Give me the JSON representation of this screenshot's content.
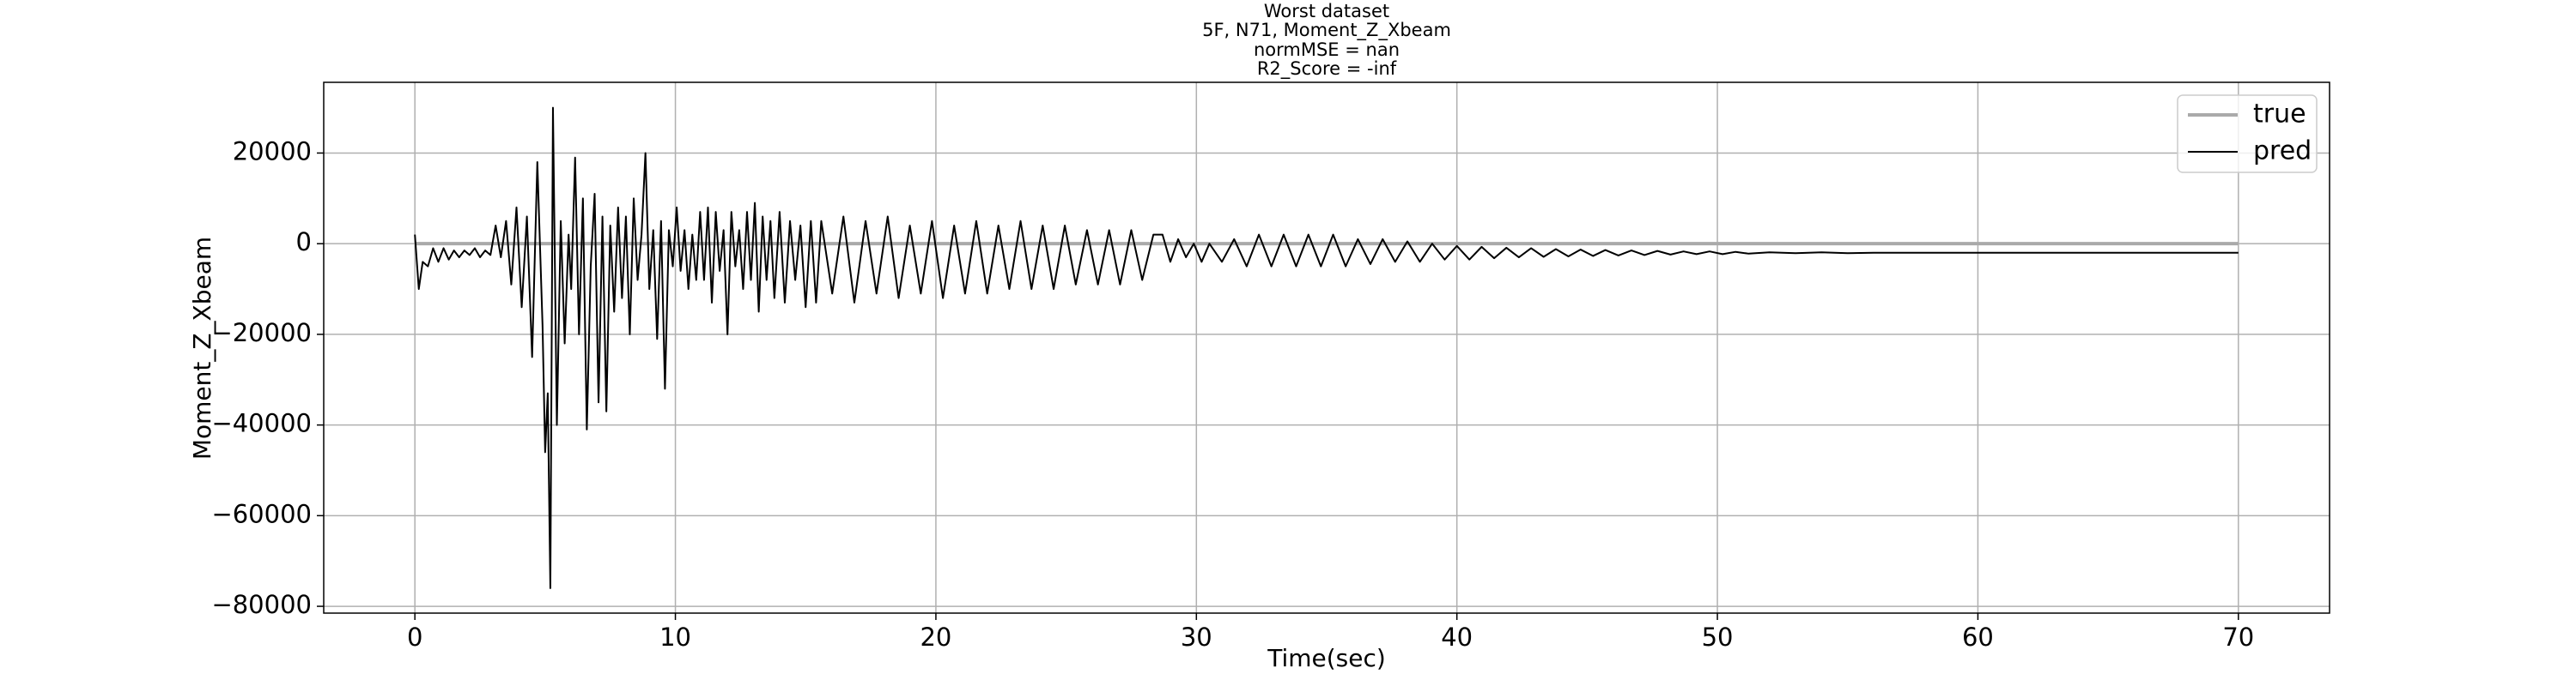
{
  "chart_data": {
    "type": "line",
    "title": [
      "Worst dataset",
      "5F, N71, Moment_Z_Xbeam",
      "normMSE = nan",
      "R2_Score = -inf"
    ],
    "xlabel": "Time(sec)",
    "ylabel": "Moment_Z_Xbeam",
    "xlim": [
      -3.5,
      73.5
    ],
    "xticks": [
      0,
      10,
      20,
      30,
      40,
      50,
      60,
      70
    ],
    "ylim": [
      -81500,
      35600
    ],
    "yticks": [
      {
        "value": -80000,
        "label": "−80000"
      },
      {
        "value": -60000,
        "label": "−60000"
      },
      {
        "value": -40000,
        "label": "−40000"
      },
      {
        "value": -20000,
        "label": "−20000"
      },
      0,
      20000
    ],
    "grid": true,
    "legend": "upper right",
    "series": [
      {
        "name": "true",
        "color": "#aaaaaa",
        "x": [
          0,
          70
        ],
        "values": [
          0,
          0
        ]
      },
      {
        "name": "pred",
        "color": "#000000",
        "x": [
          0,
          0.15,
          0.3,
          0.5,
          0.7,
          0.9,
          1.1,
          1.3,
          1.5,
          1.7,
          1.9,
          2.1,
          2.3,
          2.5,
          2.7,
          2.9,
          3.1,
          3.3,
          3.5,
          3.7,
          3.9,
          4.1,
          4.3,
          4.5,
          4.7,
          4.9,
          5.0,
          5.1,
          5.2,
          5.3,
          5.45,
          5.6,
          5.75,
          5.9,
          6.0,
          6.15,
          6.3,
          6.45,
          6.6,
          6.75,
          6.9,
          7.05,
          7.2,
          7.35,
          7.5,
          7.65,
          7.8,
          7.95,
          8.1,
          8.25,
          8.4,
          8.55,
          8.7,
          8.85,
          9.0,
          9.15,
          9.3,
          9.45,
          9.6,
          9.75,
          9.9,
          10.05,
          10.2,
          10.35,
          10.5,
          10.65,
          10.8,
          10.95,
          11.1,
          11.25,
          11.4,
          11.55,
          11.7,
          11.85,
          12.0,
          12.15,
          12.3,
          12.45,
          12.6,
          12.75,
          12.9,
          13.05,
          13.2,
          13.35,
          13.5,
          13.65,
          13.8,
          14.0,
          14.2,
          14.4,
          14.6,
          14.8,
          15.0,
          15.2,
          15.4,
          15.6,
          16.02,
          16.45,
          16.87,
          17.3,
          17.72,
          18.15,
          18.57,
          19.0,
          19.42,
          19.85,
          20.27,
          20.7,
          21.12,
          21.55,
          21.97,
          22.4,
          22.82,
          23.25,
          23.67,
          24.1,
          24.52,
          24.95,
          25.37,
          25.8,
          26.22,
          26.65,
          27.07,
          27.5,
          27.92,
          28.35,
          28.7,
          29.0,
          29.3,
          29.6,
          29.9,
          30.2,
          30.5,
          30.98,
          31.45,
          31.93,
          32.4,
          32.88,
          33.35,
          33.83,
          34.3,
          34.78,
          35.25,
          35.73,
          36.2,
          36.68,
          37.15,
          37.63,
          38.1,
          38.58,
          39.05,
          39.53,
          40.0,
          40.48,
          40.95,
          41.43,
          41.9,
          42.38,
          42.85,
          43.33,
          43.8,
          44.28,
          44.75,
          45.23,
          45.7,
          46.2,
          46.7,
          47.2,
          47.7,
          48.2,
          48.7,
          49.2,
          49.7,
          50.2,
          50.7,
          51.2,
          52,
          53,
          54,
          55,
          56,
          60,
          65,
          70
        ],
        "values": [
          2000,
          -10000,
          -4000,
          -5000,
          -1000,
          -4000,
          -1000,
          -3500,
          -1500,
          -3000,
          -1500,
          -2500,
          -1000,
          -3000,
          -1500,
          -2500,
          4000,
          -3000,
          5000,
          -9000,
          8000,
          -14000,
          6000,
          -25000,
          18000,
          -18000,
          -46000,
          -33000,
          -76000,
          30000,
          -40000,
          5000,
          -22000,
          2000,
          -10000,
          19000,
          -20000,
          10000,
          -41000,
          -5000,
          11000,
          -35000,
          6000,
          -37000,
          4000,
          -15000,
          8000,
          -12000,
          6000,
          -20000,
          10000,
          -8000,
          2000,
          20000,
          -10000,
          3000,
          -21000,
          5000,
          -32000,
          3000,
          -5000,
          8000,
          -6000,
          3000,
          -10000,
          2000,
          -8000,
          7000,
          -8000,
          8000,
          -13000,
          7000,
          -6000,
          3000,
          -20000,
          7000,
          -5000,
          3000,
          -10000,
          7000,
          -8000,
          9000,
          -15000,
          6000,
          -8000,
          5000,
          -12000,
          7000,
          -13000,
          5000,
          -8000,
          4000,
          -14000,
          5000,
          -13000,
          5000,
          -11000,
          6000,
          -13000,
          5000,
          -11000,
          6000,
          -12000,
          4000,
          -11000,
          5000,
          -12000,
          4000,
          -11000,
          5000,
          -11000,
          4000,
          -10000,
          5000,
          -10000,
          4000,
          -10000,
          4000,
          -9000,
          3000,
          -9000,
          3000,
          -9000,
          3000,
          -8000,
          2000,
          2000,
          -4000,
          1000,
          -3000,
          0,
          -4000,
          0,
          -4000,
          1000,
          -5000,
          2000,
          -5000,
          2000,
          -5000,
          2000,
          -5000,
          2000,
          -5000,
          1000,
          -4500,
          1000,
          -4000,
          500,
          -4000,
          0,
          -3500,
          -500,
          -3500,
          -700,
          -3200,
          -900,
          -3000,
          -1000,
          -2900,
          -1200,
          -2800,
          -1300,
          -2700,
          -1400,
          -2600,
          -1500,
          -2500,
          -1600,
          -2400,
          -1700,
          -2300,
          -1700,
          -2300,
          -1800,
          -2200,
          -1900,
          -2100,
          -1900,
          -2100,
          -2000,
          -2000,
          -2000,
          -2000
        ]
      }
    ]
  }
}
